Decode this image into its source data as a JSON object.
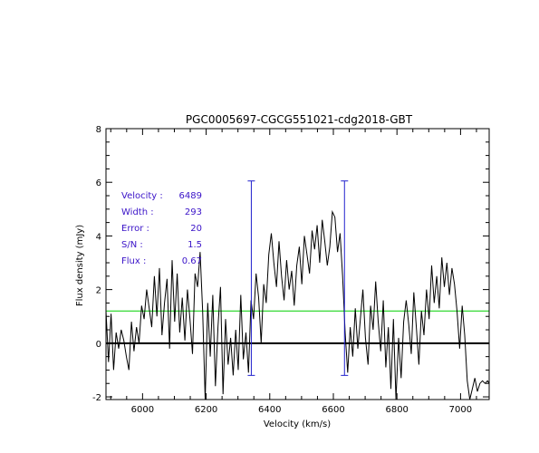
{
  "chart_data": {
    "type": "line",
    "title": "PGC0005697-CGCG551021-cdg2018-GBT",
    "xlabel": "Velocity (km/s)",
    "ylabel": "Flux density (mJy)",
    "xlim": [
      5885,
      7090
    ],
    "ylim": [
      -2.1,
      8.0
    ],
    "xticks": [
      6000,
      6200,
      6400,
      6600,
      6800,
      7000
    ],
    "xtick_labels": [
      "6000",
      "6200",
      "6400",
      "6600",
      "6800",
      "7000"
    ],
    "yticks": [
      -2,
      0,
      2,
      4,
      6,
      8
    ],
    "ytick_labels": [
      "-2",
      "0",
      "2",
      "4",
      "6",
      "8"
    ],
    "grid": false,
    "annotations": [
      {
        "label": "Velocity :",
        "value": "6489"
      },
      {
        "label": "Width :",
        "value": "293"
      },
      {
        "label": "Error :",
        "value": "20"
      },
      {
        "label": "S/N :",
        "value": "1.5"
      },
      {
        "label": "Flux :",
        "value": "0.67"
      }
    ],
    "zero_line": 0,
    "baseline_level": 1.2,
    "marker_lines": [
      {
        "x": 6342,
        "y_bottom": -1.2,
        "y_top": 6.05
      },
      {
        "x": 6635,
        "y_bottom": -1.2,
        "y_top": 6.05
      }
    ],
    "series": [
      {
        "x": [
          5885,
          5893,
          5901,
          5909,
          5917,
          5925,
          5933,
          5941,
          5949,
          5957,
          5965,
          5973,
          5981,
          5989,
          5997,
          6005,
          6013,
          6021,
          6029,
          6037,
          6045,
          6053,
          6061,
          6069,
          6077,
          6085,
          6093,
          6101,
          6109,
          6117,
          6125,
          6133,
          6141,
          6149,
          6157,
          6165,
          6173,
          6181,
          6189,
          6197,
          6205,
          6213,
          6221,
          6229,
          6237,
          6245,
          6253,
          6261,
          6269,
          6277,
          6285,
          6293,
          6301,
          6309,
          6317,
          6325,
          6333,
          6341,
          6349,
          6357,
          6365,
          6373,
          6381,
          6389,
          6397,
          6405,
          6413,
          6421,
          6429,
          6437,
          6445,
          6453,
          6461,
          6469,
          6477,
          6485,
          6493,
          6501,
          6509,
          6517,
          6525,
          6533,
          6541,
          6549,
          6557,
          6565,
          6573,
          6581,
          6589,
          6597,
          6605,
          6613,
          6621,
          6629,
          6637,
          6645,
          6653,
          6661,
          6669,
          6677,
          6685,
          6693,
          6701,
          6709,
          6717,
          6725,
          6733,
          6741,
          6749,
          6757,
          6765,
          6773,
          6781,
          6789,
          6797,
          6805,
          6813,
          6821,
          6829,
          6837,
          6845,
          6853,
          6861,
          6869,
          6877,
          6885,
          6893,
          6901,
          6909,
          6917,
          6925,
          6933,
          6941,
          6949,
          6957,
          6965,
          6973,
          6981,
          6989,
          6997,
          7005,
          7013,
          7021,
          7029,
          7037,
          7045,
          7053,
          7061,
          7069,
          7077,
          7085,
          7090
        ],
        "y": [
          1.2,
          -0.7,
          1.1,
          -1.0,
          0.4,
          -0.2,
          0.5,
          0.1,
          -0.5,
          -1.0,
          0.8,
          -0.3,
          0.6,
          0.0,
          1.4,
          0.9,
          2.0,
          1.3,
          0.6,
          2.5,
          1.0,
          2.8,
          0.3,
          1.5,
          2.4,
          -0.2,
          3.1,
          0.8,
          2.6,
          0.4,
          1.7,
          0.1,
          2.0,
          0.9,
          -0.4,
          2.6,
          2.1,
          3.4,
          1.2,
          -2.1,
          1.5,
          -0.5,
          1.8,
          -1.6,
          0.6,
          2.1,
          -1.9,
          0.9,
          -0.8,
          0.2,
          -1.2,
          0.5,
          -1.0,
          1.8,
          -0.6,
          0.4,
          -1.1,
          1.6,
          0.9,
          2.6,
          1.7,
          0.0,
          2.2,
          1.5,
          3.3,
          4.1,
          3.0,
          2.1,
          3.8,
          2.5,
          1.6,
          3.1,
          2.0,
          2.7,
          1.4,
          2.9,
          3.6,
          2.2,
          4.0,
          3.3,
          2.6,
          4.2,
          3.5,
          4.4,
          3.0,
          4.6,
          3.8,
          2.9,
          3.6,
          4.9,
          4.7,
          3.4,
          4.1,
          2.5,
          0.4,
          -1.1,
          0.6,
          -0.5,
          1.3,
          -0.2,
          0.9,
          2.0,
          0.2,
          -0.8,
          1.4,
          0.5,
          2.3,
          0.8,
          -0.3,
          1.6,
          -0.9,
          0.6,
          -1.7,
          0.9,
          -2.1,
          0.2,
          -1.3,
          0.8,
          1.6,
          0.7,
          -0.4,
          1.9,
          0.6,
          -0.8,
          1.2,
          0.3,
          2.0,
          0.9,
          2.9,
          1.5,
          2.5,
          1.3,
          3.2,
          2.1,
          3.0,
          1.8,
          2.8,
          2.2,
          1.2,
          -0.2,
          1.4,
          0.3,
          -1.4,
          -2.1,
          -1.7,
          -1.3,
          -1.8,
          -1.5,
          -1.4,
          -1.5,
          -1.4,
          -1.5
        ]
      }
    ]
  },
  "colors": {
    "spectrum": "#000000",
    "baseline": "#00d000",
    "markers": "#2020cc",
    "annotation_text": "#3a13c8",
    "axes": "#000000"
  }
}
